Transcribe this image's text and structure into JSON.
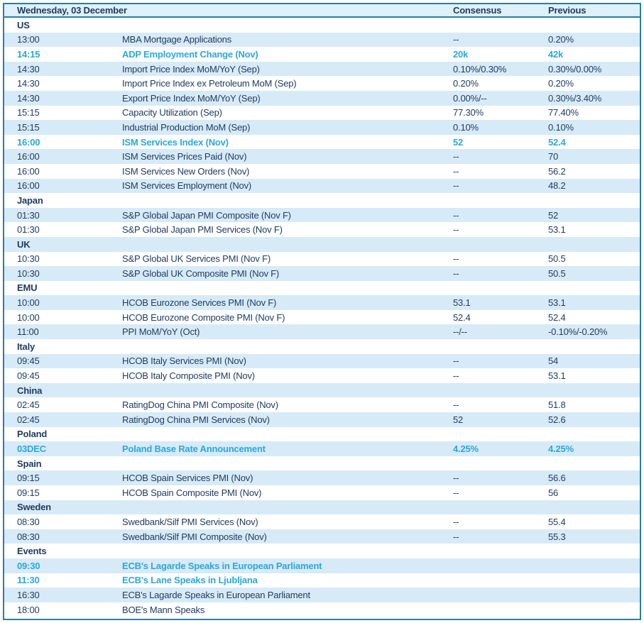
{
  "colors": {
    "border": "#2b7f9e",
    "header_bg": "#def0f9",
    "row_alt_bg": "#d7eaf7",
    "row_bg": "#ffffff",
    "text": "#1e3a5e",
    "highlight": "#29a8dc"
  },
  "header": {
    "date": "Wednesday, 03 December",
    "consensus": "Consensus",
    "previous": "Previous"
  },
  "rows": [
    {
      "type": "section",
      "label": "US"
    },
    {
      "type": "event",
      "time": "13:00",
      "event": "MBA Mortgage Applications",
      "consensus": "--",
      "previous": "0.20%",
      "highlight": false
    },
    {
      "type": "event",
      "time": "14:15",
      "event": "ADP Employment Change (Nov)",
      "consensus": "20k",
      "previous": "42k",
      "highlight": true
    },
    {
      "type": "event",
      "time": "14:30",
      "event": "Import Price Index MoM/YoY (Sep)",
      "consensus": "0.10%/0.30%",
      "previous": "0.30%/0.00%",
      "highlight": false
    },
    {
      "type": "event",
      "time": "14:30",
      "event": "Import Price Index ex Petroleum MoM (Sep)",
      "consensus": "0.20%",
      "previous": "0.20%",
      "highlight": false
    },
    {
      "type": "event",
      "time": "14:30",
      "event": "Export Price Index MoM/YoY (Sep)",
      "consensus": "0.00%/--",
      "previous": "0.30%/3.40%",
      "highlight": false
    },
    {
      "type": "event",
      "time": "15:15",
      "event": "Capacity Utilization (Sep)",
      "consensus": "77.30%",
      "previous": "77.40%",
      "highlight": false
    },
    {
      "type": "event",
      "time": "15:15",
      "event": "Industrial Production MoM (Sep)",
      "consensus": "0.10%",
      "previous": "0.10%",
      "highlight": false
    },
    {
      "type": "event",
      "time": "16:00",
      "event": "ISM Services Index (Nov)",
      "consensus": "52",
      "previous": "52.4",
      "highlight": true
    },
    {
      "type": "event",
      "time": "16:00",
      "event": "ISM Services Prices Paid (Nov)",
      "consensus": "--",
      "previous": "70",
      "highlight": false
    },
    {
      "type": "event",
      "time": "16:00",
      "event": "ISM Services New Orders (Nov)",
      "consensus": "--",
      "previous": "56.2",
      "highlight": false
    },
    {
      "type": "event",
      "time": "16:00",
      "event": "ISM Services Employment (Nov)",
      "consensus": "--",
      "previous": "48.2",
      "highlight": false
    },
    {
      "type": "section",
      "label": "Japan"
    },
    {
      "type": "event",
      "time": "01:30",
      "event": "S&P Global Japan PMI Composite (Nov F)",
      "consensus": "--",
      "previous": "52",
      "highlight": false
    },
    {
      "type": "event",
      "time": "01:30",
      "event": "S&P Global Japan PMI Services (Nov F)",
      "consensus": "--",
      "previous": "53.1",
      "highlight": false
    },
    {
      "type": "section",
      "label": "UK"
    },
    {
      "type": "event",
      "time": "10:30",
      "event": "S&P Global UK Services PMI (Nov F)",
      "consensus": "--",
      "previous": "50.5",
      "highlight": false
    },
    {
      "type": "event",
      "time": "10:30",
      "event": "S&P Global UK Composite PMI (Nov F)",
      "consensus": "--",
      "previous": "50.5",
      "highlight": false
    },
    {
      "type": "section",
      "label": "EMU"
    },
    {
      "type": "event",
      "time": "10:00",
      "event": "HCOB Eurozone Services PMI (Nov F)",
      "consensus": "53.1",
      "previous": "53.1",
      "highlight": false
    },
    {
      "type": "event",
      "time": "10:00",
      "event": "HCOB Eurozone Composite PMI (Nov F)",
      "consensus": "52.4",
      "previous": "52.4",
      "highlight": false
    },
    {
      "type": "event",
      "time": "11:00",
      "event": "PPI MoM/YoY (Oct)",
      "consensus": "--/--",
      "previous": "-0.10%/-0.20%",
      "highlight": false
    },
    {
      "type": "section",
      "label": "Italy"
    },
    {
      "type": "event",
      "time": "09:45",
      "event": "HCOB Italy Services PMI (Nov)",
      "consensus": "--",
      "previous": "54",
      "highlight": false
    },
    {
      "type": "event",
      "time": "09:45",
      "event": "HCOB Italy Composite PMI (Nov)",
      "consensus": "--",
      "previous": "53.1",
      "highlight": false
    },
    {
      "type": "section",
      "label": "China"
    },
    {
      "type": "event",
      "time": "02:45",
      "event": "RatingDog China PMI Composite (Nov)",
      "consensus": "--",
      "previous": "51.8",
      "highlight": false
    },
    {
      "type": "event",
      "time": "02:45",
      "event": "RatingDog China PMI Services (Nov)",
      "consensus": "52",
      "previous": "52.6",
      "highlight": false
    },
    {
      "type": "section",
      "label": "Poland"
    },
    {
      "type": "event",
      "time": "03DEC",
      "event": "Poland Base Rate Announcement",
      "consensus": "4.25%",
      "previous": "4.25%",
      "highlight": true
    },
    {
      "type": "section",
      "label": "Spain"
    },
    {
      "type": "event",
      "time": "09:15",
      "event": "HCOB Spain Services PMI (Nov)",
      "consensus": "--",
      "previous": "56.6",
      "highlight": false
    },
    {
      "type": "event",
      "time": "09:15",
      "event": "HCOB Spain Composite PMI (Nov)",
      "consensus": "--",
      "previous": "56",
      "highlight": false
    },
    {
      "type": "section",
      "label": "Sweden"
    },
    {
      "type": "event",
      "time": "08:30",
      "event": "Swedbank/Silf PMI Services (Nov)",
      "consensus": "--",
      "previous": "55.4",
      "highlight": false
    },
    {
      "type": "event",
      "time": "08:30",
      "event": "Swedbank/Silf PMI Composite (Nov)",
      "consensus": "--",
      "previous": "55.3",
      "highlight": false
    },
    {
      "type": "section",
      "label": "Events"
    },
    {
      "type": "event",
      "time": "09:30",
      "event": "ECB's Lagarde Speaks in European Parliament",
      "consensus": "",
      "previous": "",
      "highlight": true
    },
    {
      "type": "event",
      "time": "11:30",
      "event": "ECB's Lane Speaks in Ljubljana",
      "consensus": "",
      "previous": "",
      "highlight": true
    },
    {
      "type": "event",
      "time": "16:30",
      "event": "ECB's Lagarde Speaks in European Parliament",
      "consensus": "",
      "previous": "",
      "highlight": false
    },
    {
      "type": "event",
      "time": "18:00",
      "event": "BOE's Mann Speaks",
      "consensus": "",
      "previous": "",
      "highlight": false
    }
  ]
}
